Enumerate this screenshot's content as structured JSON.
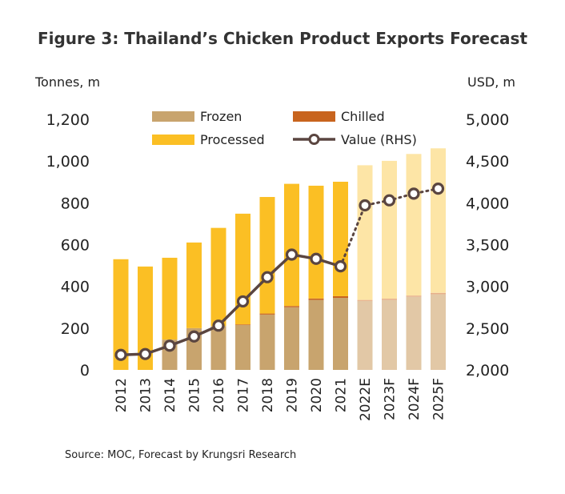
{
  "title": "Figure 3: Thailand’s Chicken Product Exports Forecast",
  "left_unit": "Tonnes, m",
  "right_unit": "USD, m",
  "source": "Source: MOC, Forecast by Krungsri Research",
  "colors": {
    "frozen": "#c8a46e",
    "chilled": "#c8641e",
    "processed": "#fbbf24",
    "frozen_forecast": "#e2c8a6",
    "chilled_forecast": "#e7b08a",
    "processed_forecast": "#fde5a6",
    "value_line": "#5a4540"
  },
  "chart_data": {
    "type": "bar",
    "categories": [
      "2012",
      "2013",
      "2014",
      "2015",
      "2016",
      "2017",
      "2018",
      "2019",
      "2020",
      "2021",
      "2022E",
      "2023F",
      "2024F",
      "2025F"
    ],
    "forecast_from_index": 10,
    "series": [
      {
        "name": "Frozen",
        "axis": "left",
        "stacked": true,
        "values": [
          0,
          0,
          145,
          200,
          210,
          215,
          265,
          300,
          335,
          345,
          330,
          335,
          350,
          362
        ]
      },
      {
        "name": "Chilled",
        "axis": "left",
        "stacked": true,
        "values": [
          0,
          0,
          0,
          0,
          0,
          3,
          5,
          6,
          7,
          8,
          5,
          6,
          6,
          7
        ]
      },
      {
        "name": "Processed",
        "axis": "left",
        "stacked": true,
        "values": [
          530,
          495,
          392,
          410,
          470,
          530,
          558,
          585,
          540,
          548,
          645,
          660,
          678,
          692
        ]
      },
      {
        "name": "Value (RHS)",
        "axis": "right",
        "type": "line",
        "values": [
          2180,
          2190,
          2290,
          2400,
          2530,
          2820,
          3110,
          3380,
          3330,
          3240,
          3970,
          4030,
          4110,
          4170
        ]
      }
    ],
    "left_axis": {
      "label": "Tonnes, m",
      "ylim": [
        0,
        1200
      ],
      "ticks": [
        "0",
        "200",
        "400",
        "600",
        "800",
        "1,000",
        "1,200"
      ]
    },
    "right_axis": {
      "label": "USD, m",
      "ylim": [
        2000,
        5000
      ],
      "ticks": [
        "2,000",
        "2,500",
        "3,000",
        "3,500",
        "4,000",
        "4,500",
        "5,000"
      ]
    },
    "grid": false,
    "legend": {
      "position": "top",
      "items": [
        "Frozen",
        "Chilled",
        "Processed",
        "Value (RHS)"
      ]
    }
  }
}
